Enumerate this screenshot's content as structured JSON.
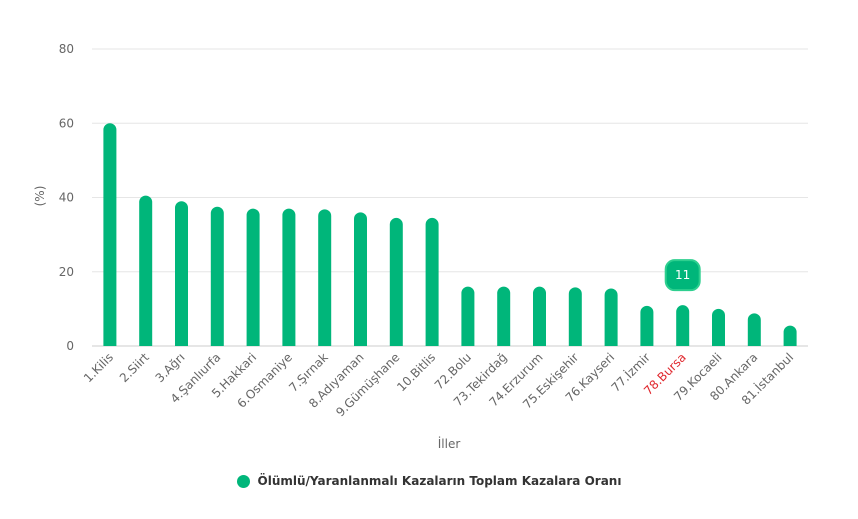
{
  "chart_data": {
    "type": "bar",
    "xlabel": "İller",
    "ylabel": "(%)",
    "ylim": [
      0,
      80
    ],
    "yticks": [
      0,
      20,
      40,
      60,
      80
    ],
    "grid": true,
    "categories": [
      "1.Kilis",
      "2.Siirt",
      "3.Ağrı",
      "4.Şanlıurfa",
      "5.Hakkari",
      "6.Osmaniye",
      "7.Şırnak",
      "8.Adıyaman",
      "9.Gümüşhane",
      "10.Bitlis",
      "72.Bolu",
      "73.Tekirdağ",
      "74.Erzurum",
      "75.Eskişehir",
      "76.Kayseri",
      "77.İzmir",
      "78.Bursa",
      "79.Kocaeli",
      "80.Ankara",
      "81.İstanbul"
    ],
    "series": [
      {
        "name": "Ölümlü/Yaranlanmalı Kazaların Toplam Kazalara Oranı",
        "values": [
          60,
          40.5,
          39,
          37.5,
          37,
          37,
          36.8,
          36,
          34.5,
          34.5,
          16,
          16,
          16,
          15.8,
          15.5,
          10.8,
          11,
          10,
          8.8,
          5.5
        ]
      }
    ],
    "highlight": {
      "category": "78.Bursa",
      "label": "11",
      "label_color": "#e0282e"
    },
    "legend": {
      "position": "bottom-center"
    },
    "colors": {
      "bar": "#00b67a",
      "grid": "#e6e6e6",
      "tooltip_bg": "#00b67a",
      "tooltip_border": "#2ecf8f"
    }
  }
}
